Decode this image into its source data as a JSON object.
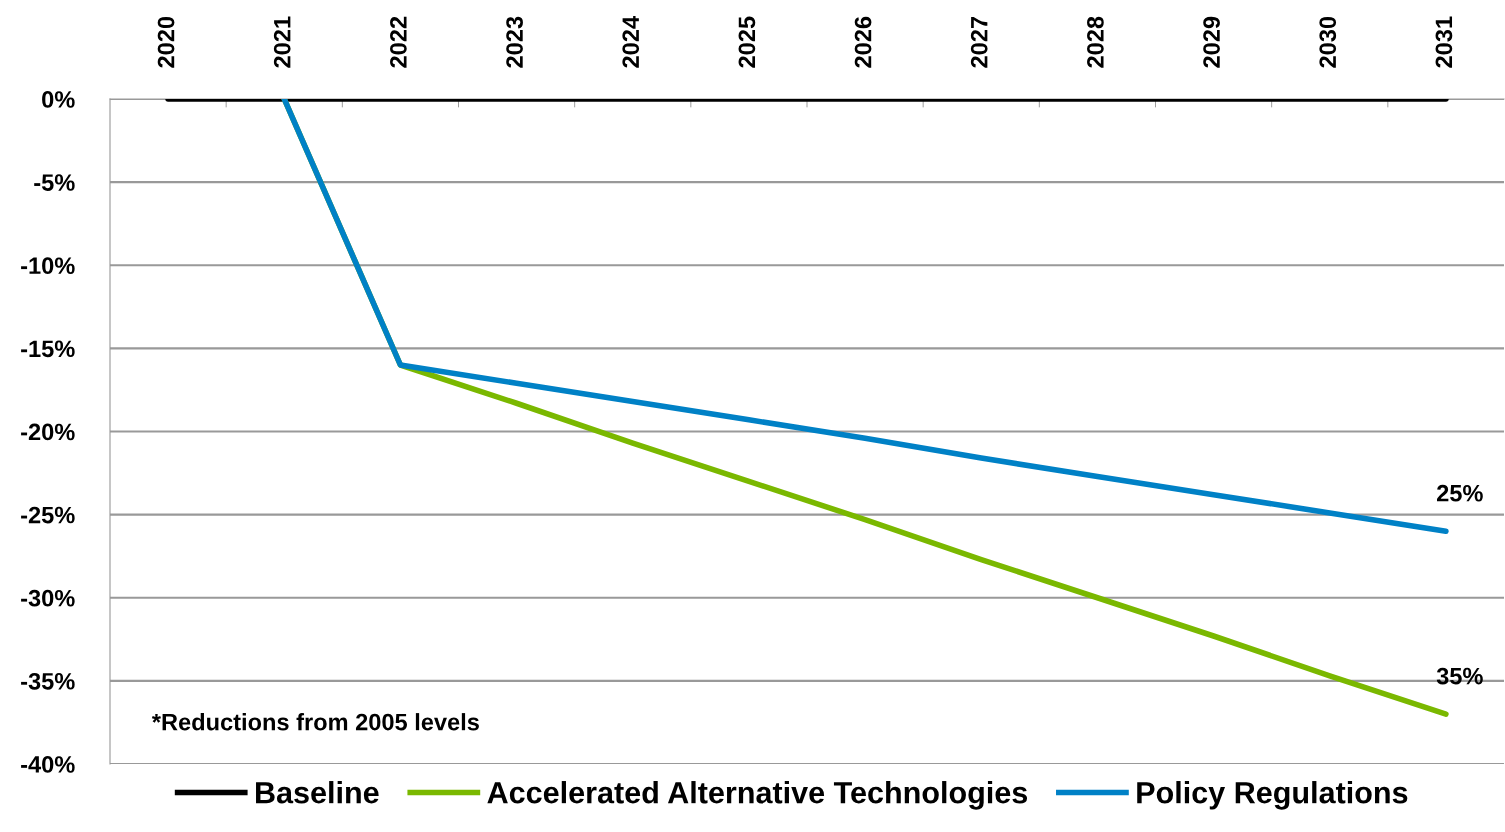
{
  "chart_data": {
    "type": "line",
    "categories": [
      "2020",
      "2021",
      "2022",
      "2023",
      "2024",
      "2025",
      "2026",
      "2027",
      "2028",
      "2029",
      "2030",
      "2031"
    ],
    "series": [
      {
        "name": "Baseline",
        "color": "#000000",
        "values": [
          0,
          0,
          0,
          0,
          0,
          0,
          0,
          0,
          0,
          0,
          0,
          0
        ]
      },
      {
        "name": "Accelerated Alternative Technologies",
        "color": "#7ab800",
        "values": [
          null,
          0,
          -16,
          -18.3,
          -20.7,
          -23,
          -25.3,
          -27.7,
          -30,
          -32.3,
          -34.7,
          -37
        ]
      },
      {
        "name": "Policy Regulations",
        "color": "#0081c6",
        "values": [
          null,
          0,
          -16,
          -17.1,
          -18.2,
          -19.3,
          -20.4,
          -21.6,
          -22.7,
          -23.8,
          -24.9,
          -26
        ]
      }
    ],
    "ylim": [
      -40,
      0
    ],
    "yticks": [
      {
        "value": 0,
        "label": "0%"
      },
      {
        "value": -5,
        "label": "-5%"
      },
      {
        "value": -10,
        "label": "-10%"
      },
      {
        "value": -15,
        "label": "-15%"
      },
      {
        "value": -20,
        "label": "-20%"
      },
      {
        "value": -25,
        "label": "-25%"
      },
      {
        "value": -30,
        "label": "-30%"
      },
      {
        "value": -35,
        "label": "-35%"
      },
      {
        "value": -40,
        "label": "-40%"
      }
    ],
    "grid": "y",
    "legend": "bottom",
    "marker": "none",
    "line_style": "solid",
    "annotations": [
      {
        "text": "25%",
        "x": "2031",
        "y": -26
      },
      {
        "text": "35%",
        "x": "2031",
        "y": -37
      },
      "*Reductions from 2005 levels"
    ]
  }
}
